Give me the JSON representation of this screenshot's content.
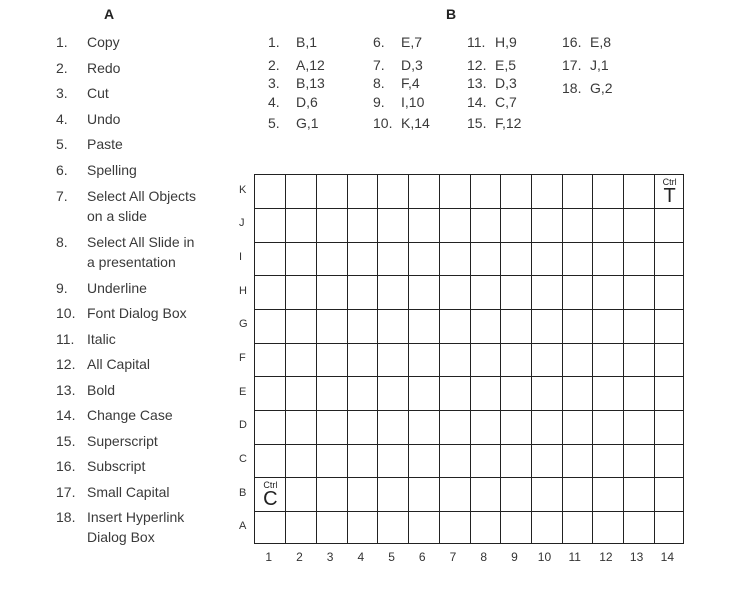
{
  "column_a": {
    "heading": "A",
    "items": [
      {
        "num": "1.",
        "lines": [
          "Copy"
        ]
      },
      {
        "num": "2.",
        "lines": [
          "Redo"
        ]
      },
      {
        "num": "3.",
        "lines": [
          "Cut"
        ]
      },
      {
        "num": "4.",
        "lines": [
          "Undo"
        ]
      },
      {
        "num": "5.",
        "lines": [
          "Paste"
        ]
      },
      {
        "num": "6.",
        "lines": [
          "Spelling"
        ]
      },
      {
        "num": "7.",
        "lines": [
          "Select All Objects",
          "on a slide"
        ]
      },
      {
        "num": "8.",
        "lines": [
          "Select All Slide in",
          "a presentation"
        ]
      },
      {
        "num": "9.",
        "lines": [
          "Underline"
        ]
      },
      {
        "num": "10.",
        "lines": [
          "Font Dialog Box"
        ]
      },
      {
        "num": "11.",
        "lines": [
          "Italic"
        ]
      },
      {
        "num": "12.",
        "lines": [
          "All Capital"
        ]
      },
      {
        "num": "13.",
        "lines": [
          "Bold"
        ]
      },
      {
        "num": "14.",
        "lines": [
          "Change Case"
        ]
      },
      {
        "num": "15.",
        "lines": [
          "Superscript"
        ]
      },
      {
        "num": "16.",
        "lines": [
          "Subscript"
        ]
      },
      {
        "num": "17.",
        "lines": [
          "Small Capital"
        ]
      },
      {
        "num": "18.",
        "lines": [
          "Insert Hyperlink",
          "Dialog Box"
        ]
      }
    ]
  },
  "column_b": {
    "heading": "B",
    "items": [
      {
        "num": "1.",
        "coord": "B,1"
      },
      {
        "num": "2.",
        "coord": "A,12"
      },
      {
        "num": "3.",
        "coord": "B,13"
      },
      {
        "num": "4.",
        "coord": "D,6"
      },
      {
        "num": "5.",
        "coord": "G,1"
      },
      {
        "num": "6.",
        "coord": "E,7"
      },
      {
        "num": "7.",
        "coord": "D,3"
      },
      {
        "num": "8.",
        "coord": "F,4"
      },
      {
        "num": "9.",
        "coord": "I,10"
      },
      {
        "num": "10.",
        "coord": "K,14"
      },
      {
        "num": "11.",
        "coord": "H,9"
      },
      {
        "num": "12.",
        "coord": "E,5"
      },
      {
        "num": "13.",
        "coord": "D,3"
      },
      {
        "num": "14.",
        "coord": "C,7"
      },
      {
        "num": "15.",
        "coord": "F,12"
      },
      {
        "num": "16.",
        "coord": "E,8"
      },
      {
        "num": "17.",
        "coord": "J,1"
      },
      {
        "num": "18.",
        "coord": "G,2"
      }
    ]
  },
  "grid": {
    "rows": [
      "K",
      "J",
      "I",
      "H",
      "G",
      "F",
      "E",
      "D",
      "C",
      "B",
      "A"
    ],
    "cols": [
      "1",
      "2",
      "3",
      "4",
      "5",
      "6",
      "7",
      "8",
      "9",
      "10",
      "11",
      "12",
      "13",
      "14"
    ],
    "filled_cells": [
      {
        "row": "K",
        "col": "14",
        "small": "Ctrl",
        "big": "T"
      },
      {
        "row": "B",
        "col": "1",
        "small": "Ctrl",
        "big": "C"
      }
    ]
  }
}
